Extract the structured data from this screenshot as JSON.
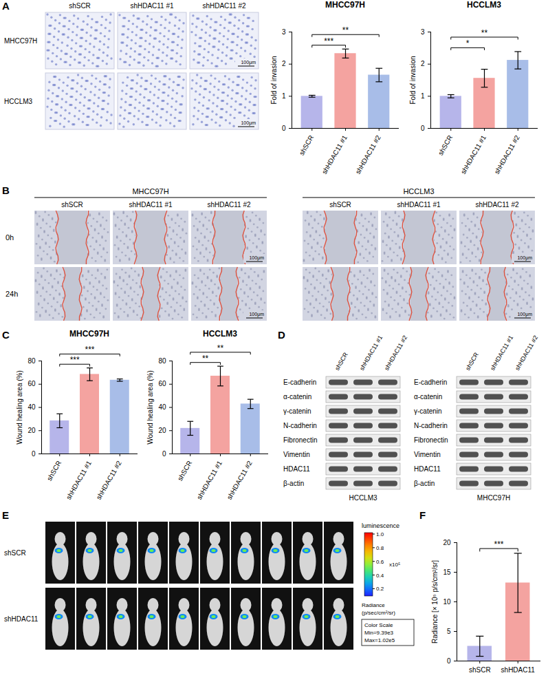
{
  "panels": [
    {
      "letter": "A",
      "rows": [
        "MHCC97H",
        "HCCLM3"
      ],
      "columns": [
        "shSCR",
        "shHDAC11 #1",
        "shHDAC11 #2"
      ],
      "scale_bar": "100μm"
    },
    {
      "letter": "B",
      "groups": [
        "MHCC97H",
        "HCCLM3"
      ],
      "columns": [
        "shSCR",
        "shHDAC11 #1",
        "shHDAC11 #2"
      ],
      "rows": [
        "0h",
        "24h"
      ],
      "scale_bar": "100μm"
    },
    {
      "letter": "C"
    },
    {
      "letter": "D",
      "blots": [
        {
          "cell_line": "HCCLM3",
          "lanes": [
            "shSCR",
            "shHDAC11 #1",
            "shHDAC11 #2"
          ],
          "proteins": [
            "E-cadherin",
            "α-catenin",
            "γ-catenin",
            "N-cadherin",
            "Fibronectin",
            "Vimentin",
            "HDAC11",
            "β-actin"
          ]
        },
        {
          "cell_line": "MHCC97H",
          "lanes": [
            "shSCR",
            "shHDAC11 #1",
            "shHDAC11 #2"
          ],
          "proteins": [
            "E-cadherin",
            "α-catenin",
            "γ-catenin",
            "N-cadherin",
            "Fibronectin",
            "Vimentin",
            "HDAC11",
            "β-actin"
          ]
        }
      ]
    },
    {
      "letter": "E",
      "rows": [
        "shSCR",
        "shHDAC11"
      ],
      "mice_per_row": 10,
      "colorbar": {
        "title": "luminescence",
        "multiplier": "x10⁵",
        "range": [
          0.0939,
          1.02
        ],
        "ticks": [
          {
            "value": 1,
            "label": "1.0"
          },
          0.8,
          0.6,
          0.4,
          0.2
        ],
        "label": "Radiance",
        "unit": "(p/sec/cm²/sr)",
        "box": [
          "Color Scale",
          "Min=9.39e3",
          "Max=1.02e5"
        ]
      }
    },
    {
      "letter": "F"
    }
  ],
  "chart_data": [
    {
      "type": "bar",
      "title": "MHCC97H",
      "y_label": "Fold of invasion",
      "categories": [
        "shSCR",
        "shHDAC11 #1",
        "shHDAC11 #2"
      ],
      "values": [
        1.0,
        2.33,
        1.66
      ],
      "errors": [
        0.03,
        0.14,
        0.21
      ],
      "colors": [
        "#b6b5ea",
        "#f4a3a0",
        "#a8bde8"
      ],
      "ylim": [
        0,
        3
      ],
      "yticks": [
        0,
        1,
        2,
        3
      ],
      "annotations": [
        {
          "from": "shSCR",
          "to": "shHDAC11 #1",
          "label": "***"
        },
        {
          "from": "shSCR",
          "to": "shHDAC11 #2",
          "label": "**"
        }
      ]
    },
    {
      "type": "bar",
      "title": "HCCLM3",
      "y_label": "Fold of invasion",
      "categories": [
        "shSCR",
        "shHDAC11 #1",
        "shHDAC11 #2"
      ],
      "values": [
        1.0,
        1.56,
        2.12
      ],
      "errors": [
        0.05,
        0.28,
        0.27
      ],
      "colors": [
        "#b6b5ea",
        "#f4a3a0",
        "#a8bde8"
      ],
      "ylim": [
        0,
        3
      ],
      "yticks": [
        0,
        1,
        2,
        3
      ],
      "annotations": [
        {
          "from": "shSCR",
          "to": "shHDAC11 #1",
          "label": "*"
        },
        {
          "from": "shSCR",
          "to": "shHDAC11 #2",
          "label": "**"
        }
      ]
    },
    {
      "type": "bar",
      "title": "MHCC97H",
      "y_label": "Wound healing area (%)",
      "categories": [
        "shSCR",
        "shHDAC11 #1",
        "shHDAC11 #2"
      ],
      "values": [
        28.5,
        68.5,
        63.5
      ],
      "errors": [
        6,
        5.5,
        1
      ],
      "colors": [
        "#b6b5ea",
        "#f4a3a0",
        "#a8bde8"
      ],
      "ylim": [
        0,
        80
      ],
      "yticks": [
        0,
        20,
        40,
        60,
        80
      ],
      "annotations": [
        {
          "from": "shSCR",
          "to": "shHDAC11 #1",
          "label": "***"
        },
        {
          "from": "shSCR",
          "to": "shHDAC11 #2",
          "label": "***"
        }
      ]
    },
    {
      "type": "bar",
      "title": "HCCLM3",
      "y_label": "Wound healing area (%)",
      "categories": [
        "shSCR",
        "shHDAC11 #1",
        "shHDAC11 #2"
      ],
      "values": [
        22,
        67,
        43
      ],
      "errors": [
        6,
        8.5,
        4
      ],
      "colors": [
        "#b6b5ea",
        "#f4a3a0",
        "#a8bde8"
      ],
      "ylim": [
        0,
        80
      ],
      "yticks": [
        0,
        20,
        40,
        60,
        80
      ],
      "annotations": [
        {
          "from": "shSCR",
          "to": "shHDAC11 #1",
          "label": "**"
        },
        {
          "from": "shSCR",
          "to": "shHDAC11 #2",
          "label": "**"
        }
      ]
    },
    {
      "type": "bar",
      "y_label": "Radiance [× 10⁵ p/s/cm²/sr]",
      "categories": [
        "shSCR",
        "shHDAC11"
      ],
      "values": [
        2.5,
        13.2
      ],
      "errors": [
        1.7,
        5
      ],
      "colors": [
        "#b6b5ea",
        "#f4a3a0"
      ],
      "ylim": [
        0,
        20
      ],
      "yticks": [
        0,
        5,
        10,
        15,
        20
      ],
      "annotations": [
        {
          "from": "shSCR",
          "to": "shHDAC11",
          "label": "***"
        }
      ]
    }
  ]
}
